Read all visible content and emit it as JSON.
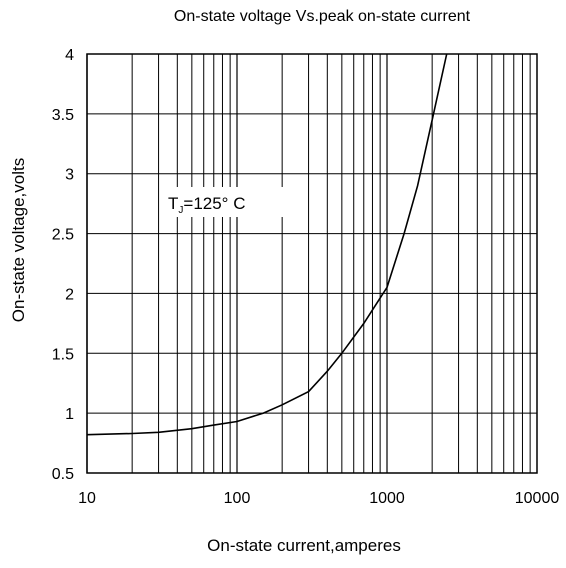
{
  "chart_data": {
    "type": "line",
    "title": "On-state voltage Vs.peak on-state current",
    "xlabel": "On-state current,amperes",
    "ylabel": "On-state voltage,volts",
    "xscale": "log",
    "xlim": [
      10,
      10000
    ],
    "ylim": [
      0.5,
      4
    ],
    "x_ticks": [
      "10",
      "100",
      "1000",
      "10000"
    ],
    "y_ticks": [
      "0.5",
      "1",
      "1.5",
      "2",
      "2.5",
      "3",
      "3.5",
      "4"
    ],
    "grid": true,
    "legend": "none",
    "annotation": {
      "text_main": "T",
      "text_sub": "J",
      "text_rest": "=125° C"
    },
    "series": [
      {
        "color": "#000000",
        "x": [
          10,
          20,
          30,
          50,
          70,
          100,
          150,
          200,
          300,
          400,
          500,
          700,
          1000,
          1300,
          1600,
          2000,
          2500
        ],
        "y": [
          0.82,
          0.83,
          0.84,
          0.87,
          0.9,
          0.93,
          1.0,
          1.07,
          1.18,
          1.35,
          1.5,
          1.75,
          2.05,
          2.5,
          2.9,
          3.45,
          4.0
        ]
      }
    ]
  }
}
